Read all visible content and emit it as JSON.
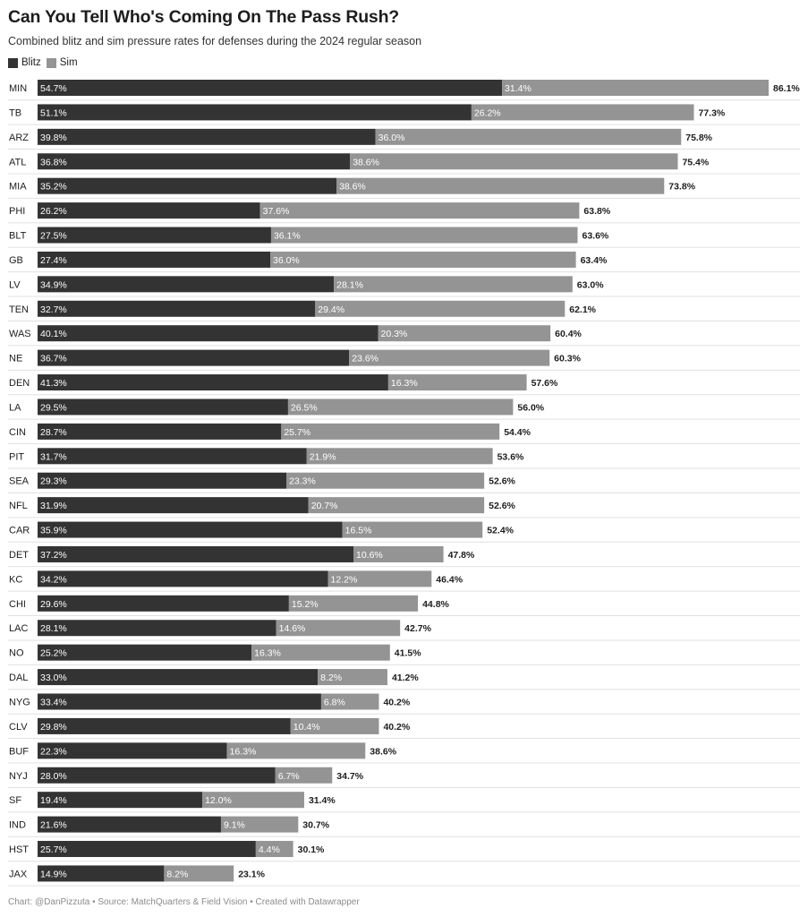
{
  "title": "Can You Tell Who's Coming On The Pass Rush?",
  "subtitle": "Combined blitz and sim pressure rates for defenses during the 2024 regular season",
  "footer": "Chart: @DanPizzuta • Source: MatchQuarters & Field Vision • Created with Datawrapper",
  "colors": {
    "blitz": "#333333",
    "sim": "#949494",
    "separator": "#e0e0e0"
  },
  "chart_data": {
    "type": "bar",
    "orientation": "horizontal",
    "stacked": true,
    "legend": [
      {
        "name": "Blitz",
        "color": "#333333"
      },
      {
        "name": "Sim",
        "color": "#949494"
      }
    ],
    "categories": [
      "MIN",
      "TB",
      "ARZ",
      "ATL",
      "MIA",
      "PHI",
      "BLT",
      "GB",
      "LV",
      "TEN",
      "WAS",
      "NE",
      "DEN",
      "LA",
      "CIN",
      "PIT",
      "SEA",
      "NFL",
      "CAR",
      "DET",
      "KC",
      "CHI",
      "LAC",
      "NO",
      "DAL",
      "NYG",
      "CLV",
      "BUF",
      "NYJ",
      "SF",
      "IND",
      "HST",
      "JAX"
    ],
    "series": [
      {
        "name": "Blitz",
        "values": [
          54.7,
          51.1,
          39.8,
          36.8,
          35.2,
          26.2,
          27.5,
          27.4,
          34.9,
          32.7,
          40.1,
          36.7,
          41.3,
          29.5,
          28.7,
          31.7,
          29.3,
          31.9,
          35.9,
          37.2,
          34.2,
          29.6,
          28.1,
          25.2,
          33.0,
          33.4,
          29.8,
          22.3,
          28.0,
          19.4,
          21.6,
          25.7,
          14.9
        ]
      },
      {
        "name": "Sim",
        "values": [
          31.4,
          26.2,
          36.0,
          38.6,
          38.6,
          37.6,
          36.1,
          36.0,
          28.1,
          29.4,
          20.3,
          23.6,
          16.3,
          26.5,
          25.7,
          21.9,
          23.3,
          20.7,
          16.5,
          10.6,
          12.2,
          15.2,
          14.6,
          16.3,
          8.2,
          6.8,
          10.4,
          16.3,
          6.7,
          12.0,
          9.1,
          4.4,
          8.2
        ]
      }
    ],
    "totals": [
      86.1,
      77.3,
      75.8,
      75.4,
      73.8,
      63.8,
      63.6,
      63.4,
      63.0,
      62.1,
      60.4,
      60.3,
      57.6,
      56.0,
      54.4,
      53.6,
      52.6,
      52.6,
      52.4,
      47.8,
      46.4,
      44.8,
      42.7,
      41.5,
      41.2,
      40.2,
      40.2,
      38.6,
      34.7,
      31.4,
      30.7,
      30.1,
      23.1
    ],
    "value_suffix": "%",
    "xlim": [
      0,
      86.1
    ],
    "grid": false
  }
}
